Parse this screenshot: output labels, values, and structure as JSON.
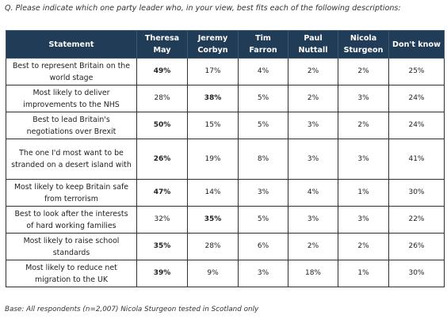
{
  "question": "Q. Please indicate which one party leader who, in your view, best fits each of the following descriptions:",
  "headers": [
    "Statement",
    "Theresa May",
    "Jeremy Corbyn",
    "Tim Farron",
    "Paul Nuttall",
    "Nicola Sturgeon",
    "Don't know"
  ],
  "rows": [
    {
      "statement": "Best to represent Britain on the world stage",
      "values": [
        "49%",
        "17%",
        "4%",
        "2%",
        "2%",
        "25%"
      ],
      "bold": 0
    },
    {
      "statement": "Most likely to deliver improvements to the NHS",
      "values": [
        "28%",
        "38%",
        "5%",
        "2%",
        "3%",
        "24%"
      ],
      "bold": 1
    },
    {
      "statement": "Best to lead Britain's negotiations over Brexit",
      "values": [
        "50%",
        "15%",
        "5%",
        "3%",
        "2%",
        "24%"
      ],
      "bold": 0
    },
    {
      "statement": "The one I'd most want to be stranded on a desert island with",
      "values": [
        "26%",
        "19%",
        "8%",
        "3%",
        "3%",
        "41%"
      ],
      "bold": 0
    },
    {
      "statement": "Most likely to keep Britain safe from terrorism",
      "values": [
        "47%",
        "14%",
        "3%",
        "4%",
        "1%",
        "30%"
      ],
      "bold": 0
    },
    {
      "statement": "Best to look after the interests of hard working families",
      "values": [
        "32%",
        "35%",
        "5%",
        "3%",
        "3%",
        "22%"
      ],
      "bold": 1
    },
    {
      "statement": "Most likely to raise school standards",
      "values": [
        "35%",
        "28%",
        "6%",
        "2%",
        "2%",
        "26%"
      ],
      "bold": 0
    },
    {
      "statement": "Most likely to reduce net migration to the UK",
      "values": [
        "39%",
        "9%",
        "3%",
        "18%",
        "1%",
        "30%"
      ],
      "bold": 0
    }
  ],
  "base_note": "Base: All respondents (n=2,007) Nicola Sturgeon tested in Scotland only",
  "colors": {
    "header_bg": "#203c56",
    "header_text": "#ffffff",
    "border": "#2f2f2f"
  }
}
